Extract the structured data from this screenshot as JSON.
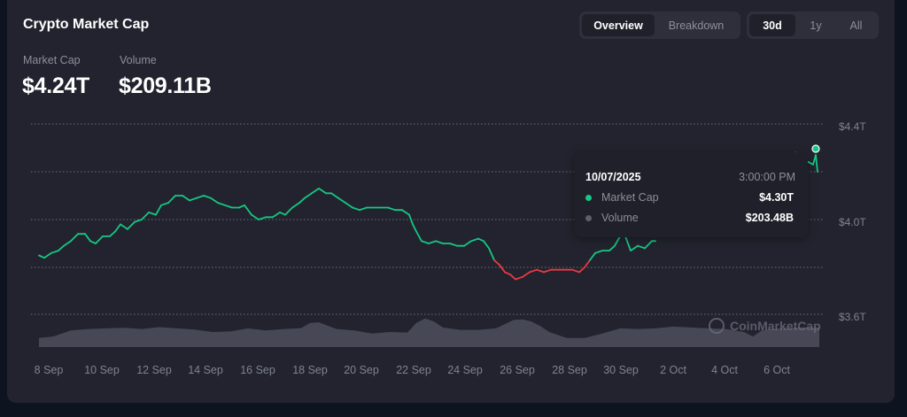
{
  "header": {
    "title": "Crypto Market Cap",
    "stats": [
      {
        "label": "Market Cap",
        "value": "$4.24T"
      },
      {
        "label": "Volume",
        "value": "$209.11B"
      }
    ]
  },
  "view_toggle": {
    "options": [
      "Overview",
      "Breakdown"
    ],
    "active": "Overview"
  },
  "range_toggle": {
    "options": [
      "30d",
      "1y",
      "All"
    ],
    "active": "30d"
  },
  "tooltip": {
    "date": "10/07/2025",
    "time": "3:00:00 PM",
    "rows": [
      {
        "name": "Market Cap",
        "value": "$4.30T",
        "color": "#16c784"
      },
      {
        "name": "Volume",
        "value": "$203.48B",
        "color": "#5c5f6d"
      }
    ]
  },
  "watermark": "CoinMarketCap",
  "colors": {
    "up": "#16c784",
    "down": "#ea3943",
    "volume": "#4a4c5a",
    "grid": "#6b6e7c"
  },
  "chart_data": {
    "type": "line",
    "title": "Crypto Market Cap",
    "xlabel": "",
    "ylabel": "Market Cap",
    "y_ticks": [
      "$4.4T",
      "$4.0T",
      "$3.6T"
    ],
    "ylim": [
      3.6,
      4.4
    ],
    "x_ticks": [
      "8 Sep",
      "10 Sep",
      "12 Sep",
      "14 Sep",
      "16 Sep",
      "18 Sep",
      "20 Sep",
      "22 Sep",
      "24 Sep",
      "26 Sep",
      "28 Sep",
      "30 Sep",
      "2 Oct",
      "4 Oct",
      "6 Oct"
    ],
    "baseline": 3.83,
    "grid": true,
    "series": [
      {
        "name": "Market Cap (T USD)",
        "x": [
          44,
          50,
          58,
          66,
          72,
          80,
          88,
          96,
          102,
          108,
          116,
          124,
          130,
          136,
          144,
          152,
          160,
          168,
          176,
          182,
          190,
          198,
          206,
          214,
          222,
          230,
          238,
          246,
          254,
          262,
          270,
          276,
          284,
          292,
          300,
          308,
          316,
          322,
          330,
          338,
          344,
          352,
          360,
          368,
          374,
          382,
          390,
          398,
          406,
          414,
          422,
          430,
          438,
          446,
          454,
          462,
          466,
          470,
          476,
          484,
          492,
          500,
          508,
          516,
          524,
          532,
          540,
          546,
          552,
          558,
          564,
          570,
          576,
          582,
          590,
          598,
          606,
          614,
          622,
          630,
          638,
          646,
          654,
          660,
          666,
          672,
          680,
          688,
          694,
          700,
          706,
          712,
          720,
          728,
          736,
          740
        ],
        "values": [
          3.85,
          3.84,
          3.86,
          3.87,
          3.89,
          3.91,
          3.94,
          3.94,
          3.91,
          3.9,
          3.93,
          3.93,
          3.95,
          3.98,
          3.96,
          3.99,
          4.0,
          4.03,
          4.02,
          4.06,
          4.07,
          4.1,
          4.1,
          4.08,
          4.09,
          4.1,
          4.09,
          4.07,
          4.06,
          4.05,
          4.05,
          4.06,
          4.02,
          4.0,
          4.01,
          4.01,
          4.03,
          4.02,
          4.05,
          4.07,
          4.09,
          4.11,
          4.13,
          4.11,
          4.11,
          4.09,
          4.07,
          4.05,
          4.04,
          4.05,
          4.05,
          4.05,
          4.05,
          4.04,
          4.04,
          4.02,
          3.98,
          3.95,
          3.91,
          3.9,
          3.91,
          3.9,
          3.9,
          3.89,
          3.89,
          3.91,
          3.92,
          3.91,
          3.88,
          3.83,
          3.81,
          3.78,
          3.77,
          3.75,
          3.76,
          3.78,
          3.79,
          3.78,
          3.79,
          3.79,
          3.79,
          3.79,
          3.78,
          3.8,
          3.83,
          3.86,
          3.87,
          3.87,
          3.89,
          3.93,
          3.93,
          3.87,
          3.89,
          3.88,
          3.91,
          3.91
        ]
      },
      {
        "name": "Market Cap (T USD) — right segment",
        "x": [
          893,
          898,
          903,
          908,
          913,
          918,
          921,
          923
        ],
        "values": [
          4.25,
          4.28,
          4.26,
          4.25,
          4.24,
          4.23,
          4.27,
          4.2
        ]
      },
      {
        "name": "Volume (relative)",
        "x": [
          44,
          60,
          80,
          100,
          120,
          140,
          160,
          180,
          200,
          220,
          240,
          260,
          280,
          300,
          320,
          340,
          350,
          360,
          380,
          400,
          420,
          440,
          460,
          470,
          480,
          490,
          500,
          520,
          540,
          560,
          580,
          590,
          600,
          610,
          620,
          640,
          660,
          680,
          700,
          720,
          740,
          760,
          780,
          800,
          820,
          840,
          850,
          860,
          880,
          900,
          925
        ],
        "values": [
          0.3,
          0.35,
          0.55,
          0.6,
          0.62,
          0.64,
          0.6,
          0.66,
          0.62,
          0.58,
          0.5,
          0.52,
          0.62,
          0.55,
          0.6,
          0.63,
          0.8,
          0.82,
          0.6,
          0.55,
          0.45,
          0.5,
          0.48,
          0.8,
          0.95,
          0.85,
          0.65,
          0.57,
          0.57,
          0.62,
          0.9,
          0.92,
          0.85,
          0.7,
          0.5,
          0.3,
          0.3,
          0.45,
          0.62,
          0.6,
          0.62,
          0.68,
          0.65,
          0.62,
          0.6,
          0.5,
          0.35,
          0.55,
          0.62,
          0.65,
          0.65
        ]
      }
    ],
    "highlight_point": {
      "date": "10/07/2025",
      "time": "3:00:00 PM",
      "market_cap": "$4.30T",
      "volume": "$203.48B"
    }
  }
}
